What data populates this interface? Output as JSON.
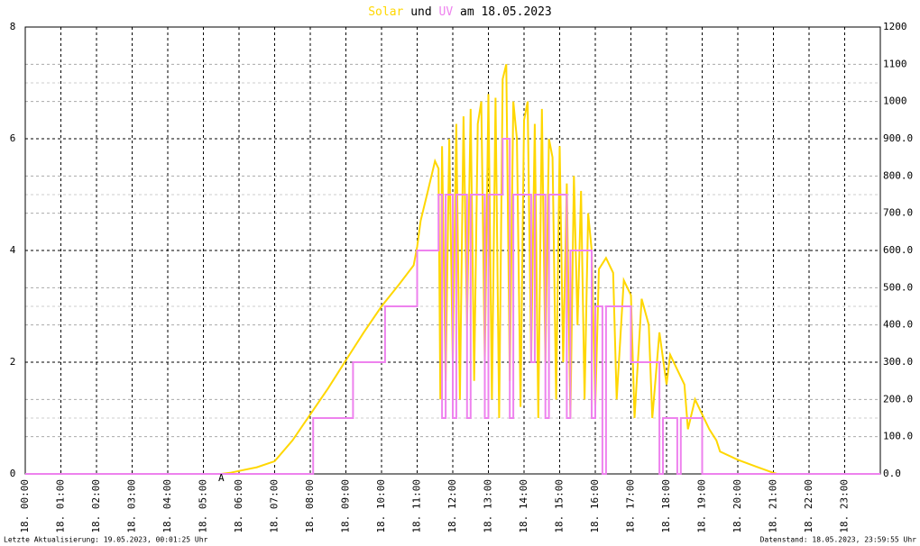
{
  "chart_data": {
    "type": "line",
    "title_parts": [
      "und",
      "am 18.05.2023"
    ],
    "annotation": "A",
    "annotation_x": 5.5,
    "footer_left": "Letzte Aktualisierung: 19.05.2023, 00:01:25 Uhr",
    "footer_right": "Datenstand: 18.05.2023, 23:59:55 Uhr",
    "xlim": [
      0,
      24
    ],
    "xticks": [
      {
        "value": 0,
        "label": "18. 00:00"
      },
      {
        "value": 1,
        "label": "18. 01:00"
      },
      {
        "value": 2,
        "label": "18. 02:00"
      },
      {
        "value": 3,
        "label": "18. 03:00"
      },
      {
        "value": 4,
        "label": "18. 04:00"
      },
      {
        "value": 5,
        "label": "18. 05:00"
      },
      {
        "value": 6,
        "label": "18. 06:00"
      },
      {
        "value": 7,
        "label": "18. 07:00"
      },
      {
        "value": 8,
        "label": "18. 08:00"
      },
      {
        "value": 9,
        "label": "18. 09:00"
      },
      {
        "value": 10,
        "label": "18. 10:00"
      },
      {
        "value": 11,
        "label": "18. 11:00"
      },
      {
        "value": 12,
        "label": "18. 12:00"
      },
      {
        "value": 13,
        "label": "18. 13:00"
      },
      {
        "value": 14,
        "label": "18. 14:00"
      },
      {
        "value": 15,
        "label": "18. 15:00"
      },
      {
        "value": 16,
        "label": "18. 16:00"
      },
      {
        "value": 17,
        "label": "18. 17:00"
      },
      {
        "value": 18,
        "label": "18. 18:00"
      },
      {
        "value": 19,
        "label": "18. 19:00"
      },
      {
        "value": 20,
        "label": "18. 20:00"
      },
      {
        "value": 21,
        "label": "18. 21:00"
      },
      {
        "value": 22,
        "label": "18. 22:00"
      },
      {
        "value": 23,
        "label": "18. 23:00"
      }
    ],
    "ylim": [
      0,
      8
    ],
    "yticks": [
      0,
      2,
      4,
      6,
      8
    ],
    "yminor": [
      1,
      3,
      5,
      7
    ],
    "y2lim": [
      0,
      1200
    ],
    "y2ticks": [
      {
        "value": 0,
        "label": "0.0"
      },
      {
        "value": 100,
        "label": "100.0"
      },
      {
        "value": 200,
        "label": "200.0"
      },
      {
        "value": 300,
        "label": "300.0"
      },
      {
        "value": 400,
        "label": "400.0"
      },
      {
        "value": 500,
        "label": "500.0"
      },
      {
        "value": 600,
        "label": "600.0"
      },
      {
        "value": 700,
        "label": "700.0"
      },
      {
        "value": 800,
        "label": "800.0"
      },
      {
        "value": 900,
        "label": "900.0"
      },
      1000,
      1100,
      1200
    ],
    "grid": true,
    "series": [
      {
        "name": "Solar",
        "color": "#ffd700",
        "axis": "y2",
        "x": [
          0,
          5.5,
          5.75,
          6,
          6.5,
          7,
          7.5,
          8,
          8.5,
          9,
          9.5,
          10,
          10.5,
          10.9,
          11,
          11.1,
          11.3,
          11.5,
          11.6,
          11.65,
          11.7,
          11.8,
          11.9,
          12.0,
          12.1,
          12.2,
          12.3,
          12.4,
          12.5,
          12.6,
          12.7,
          12.8,
          12.9,
          13.0,
          13.1,
          13.2,
          13.3,
          13.4,
          13.5,
          13.6,
          13.7,
          13.8,
          13.9,
          14.0,
          14.1,
          14.2,
          14.3,
          14.4,
          14.5,
          14.6,
          14.7,
          14.8,
          14.9,
          15.0,
          15.1,
          15.2,
          15.3,
          15.4,
          15.5,
          15.6,
          15.7,
          15.8,
          15.9,
          16.0,
          16.1,
          16.3,
          16.5,
          16.6,
          16.8,
          17.0,
          17.1,
          17.3,
          17.5,
          17.6,
          17.8,
          18.0,
          18.1,
          18.3,
          18.5,
          18.6,
          18.8,
          19.0,
          19.2,
          19.4,
          19.5,
          20,
          20.5,
          21,
          21.1,
          24
        ],
        "values": [
          0,
          0,
          3,
          8,
          18,
          34,
          90,
          160,
          230,
          305,
          380,
          450,
          510,
          560,
          610,
          680,
          760,
          840,
          820,
          200,
          880,
          250,
          900,
          300,
          940,
          200,
          960,
          400,
          980,
          250,
          940,
          1000,
          300,
          1020,
          200,
          1010,
          150,
          1060,
          1100,
          250,
          1000,
          900,
          180,
          950,
          1000,
          300,
          940,
          150,
          980,
          300,
          900,
          850,
          200,
          880,
          300,
          780,
          150,
          800,
          400,
          760,
          200,
          700,
          600,
          180,
          550,
          580,
          540,
          200,
          520,
          480,
          150,
          470,
          400,
          150,
          380,
          240,
          320,
          280,
          240,
          120,
          200,
          160,
          120,
          90,
          60,
          38,
          20,
          3,
          0,
          0
        ]
      },
      {
        "name": "UV",
        "color": "#ee82ee",
        "axis": "y",
        "x": [
          0,
          8.08,
          8.08,
          9.2,
          9.2,
          10.1,
          10.1,
          11,
          11,
          11.6,
          11.6,
          11.7,
          11.7,
          11.8,
          11.8,
          12.0,
          12.0,
          12.1,
          12.1,
          12.4,
          12.4,
          12.5,
          12.5,
          12.9,
          12.9,
          13.0,
          13.0,
          13.4,
          13.4,
          13.6,
          13.6,
          13.7,
          13.7,
          14.2,
          14.2,
          14.3,
          14.3,
          14.6,
          14.6,
          14.7,
          14.7,
          15.2,
          15.2,
          15.3,
          15.3,
          15.9,
          15.9,
          16.0,
          16.0,
          16.2,
          16.2,
          16.3,
          16.3,
          17.0,
          17.0,
          17.8,
          17.8,
          17.9,
          17.9,
          18.3,
          18.3,
          18.4,
          18.4,
          19.0,
          19.0,
          24
        ],
        "values": [
          0,
          0,
          1,
          1,
          2,
          2,
          3,
          3,
          4,
          4,
          5,
          5,
          1,
          1,
          5,
          5,
          1,
          1,
          5,
          5,
          1,
          1,
          5,
          5,
          1,
          1,
          5,
          5,
          6,
          6,
          1,
          1,
          5,
          5,
          2,
          2,
          5,
          5,
          1,
          1,
          5,
          5,
          1,
          1,
          4,
          4,
          1,
          1,
          3,
          3,
          0,
          0,
          3,
          3,
          2,
          2,
          0,
          0,
          1,
          1,
          0,
          0,
          1,
          1,
          0,
          0
        ]
      }
    ]
  }
}
